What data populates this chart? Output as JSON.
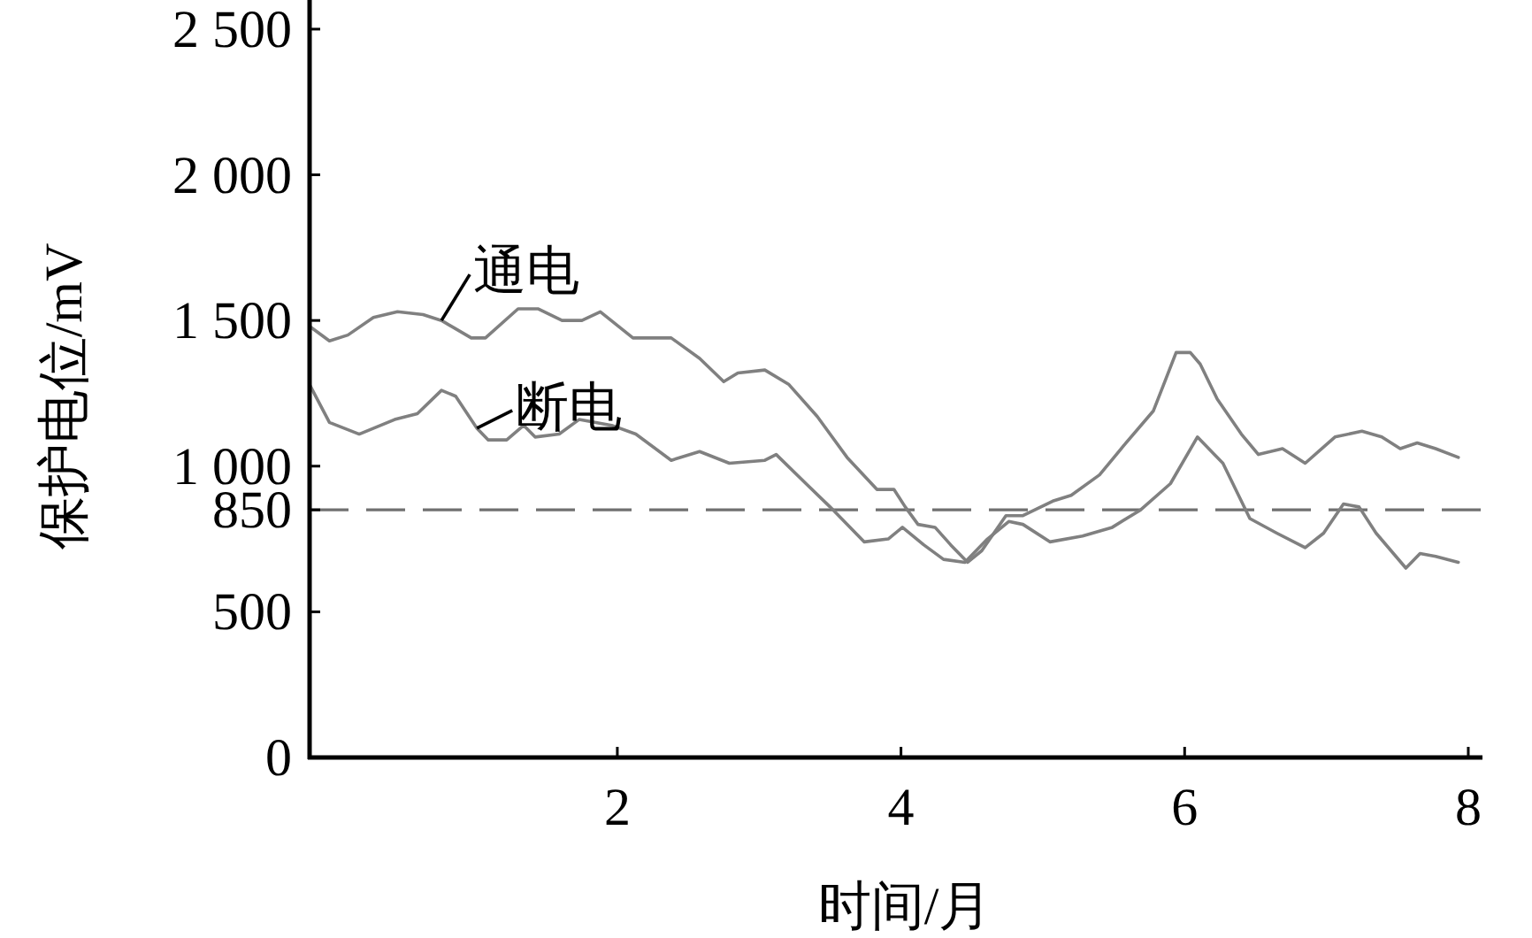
{
  "chart_data": {
    "type": "line",
    "xlabel": "时间/月",
    "ylabel": "保护电位/mV",
    "xlim": [
      -0.17,
      8.1
    ],
    "xticks": [
      2,
      4,
      6,
      8
    ],
    "ylim": [
      0,
      2600
    ],
    "yticks": [
      0,
      500,
      850,
      {
        "value": 1000,
        "label": "1 000"
      },
      {
        "value": 1500,
        "label": "1 500"
      },
      {
        "value": 2000,
        "label": "2 000"
      },
      {
        "value": 2500,
        "label": "2 500"
      }
    ],
    "grid": false,
    "legend": false,
    "line_style": "solid",
    "marker": "none",
    "ref_lines": [
      {
        "axis": "y",
        "value": 850,
        "color": "#707070",
        "line_style": "dashed"
      }
    ],
    "series": [
      {
        "name": "通电",
        "color": "#808080",
        "x": [
          -0.17,
          -0.03,
          0.1,
          0.28,
          0.45,
          0.63,
          0.76,
          0.97,
          1.07,
          1.3,
          1.44,
          1.61,
          1.75,
          1.88,
          2.11,
          2.38,
          2.58,
          2.75,
          2.85,
          3.04,
          3.21,
          3.41,
          3.62,
          3.83,
          3.95,
          4.03,
          4.12,
          4.24,
          4.35,
          4.47,
          4.57,
          4.74,
          4.86,
          5.07,
          5.2,
          5.4,
          5.57,
          5.78,
          5.86,
          5.94,
          6.04,
          6.11,
          6.23,
          6.4,
          6.52,
          6.69,
          6.85,
          7.06,
          7.25,
          7.39,
          7.52,
          7.64,
          7.77,
          7.93
        ],
        "values": [
          1480,
          1430,
          1450,
          1510,
          1530,
          1520,
          1500,
          1440,
          1440,
          1540,
          1540,
          1500,
          1500,
          1530,
          1440,
          1440,
          1370,
          1290,
          1320,
          1330,
          1280,
          1170,
          1030,
          920,
          920,
          860,
          800,
          790,
          730,
          670,
          710,
          830,
          830,
          880,
          900,
          970,
          1070,
          1190,
          1290,
          1390,
          1390,
          1350,
          1230,
          1110,
          1040,
          1060,
          1010,
          1100,
          1120,
          1100,
          1060,
          1080,
          1060,
          1030
        ]
      },
      {
        "name": "断电",
        "color": "#808080",
        "x": [
          -0.17,
          -0.03,
          0.18,
          0.43,
          0.59,
          0.76,
          0.86,
          1.01,
          1.09,
          1.22,
          1.34,
          1.42,
          1.59,
          1.73,
          1.96,
          2.13,
          2.38,
          2.58,
          2.79,
          3.04,
          3.12,
          3.33,
          3.5,
          3.74,
          3.91,
          4.01,
          4.16,
          4.3,
          4.45,
          4.61,
          4.76,
          4.86,
          5.05,
          5.28,
          5.49,
          5.69,
          5.9,
          6.09,
          6.27,
          6.46,
          6.65,
          6.85,
          6.98,
          7.12,
          7.23,
          7.35,
          7.56,
          7.66,
          7.77,
          7.93
        ],
        "values": [
          1280,
          1150,
          1110,
          1160,
          1180,
          1260,
          1240,
          1130,
          1090,
          1090,
          1140,
          1100,
          1110,
          1160,
          1140,
          1110,
          1020,
          1050,
          1010,
          1020,
          1040,
          940,
          860,
          740,
          750,
          790,
          730,
          680,
          670,
          750,
          810,
          800,
          740,
          760,
          790,
          850,
          940,
          1100,
          1010,
          820,
          770,
          720,
          770,
          870,
          860,
          770,
          650,
          700,
          690,
          670
        ]
      }
    ]
  }
}
